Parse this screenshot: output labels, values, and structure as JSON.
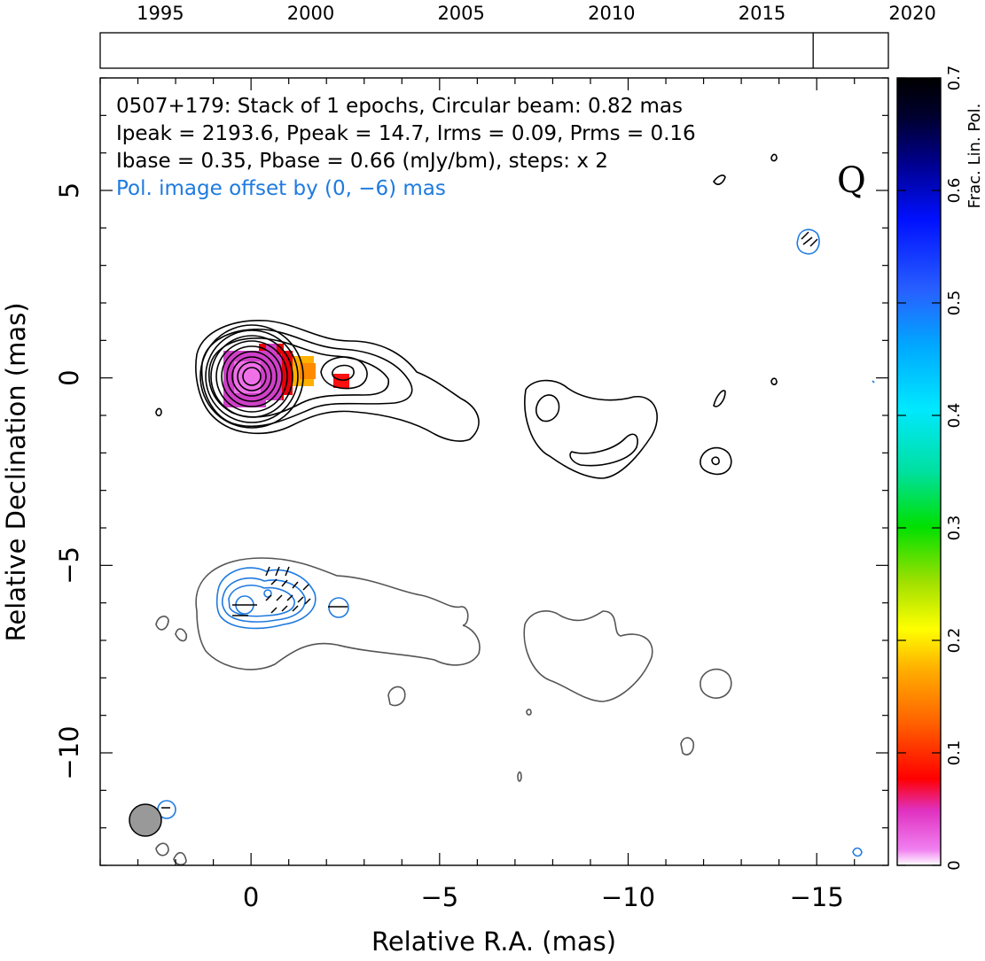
{
  "chart_data": {
    "type": "contour",
    "timeline": {
      "ticks": [
        "1995",
        "2000",
        "2005",
        "2010",
        "2015",
        "2020"
      ],
      "range": [
        1993.0,
        2019.2
      ],
      "epochs": [
        2016.7
      ]
    },
    "info": {
      "line1": "0507+179: Stack of 1 epochs, Circular beam: 0.82 mas",
      "line2": "Ipeak = 2193.6, Ppeak = 14.7, Irms = 0.09, Prms = 0.16",
      "line3": "Ibase = 0.35, Pbase = 0.66 (mJy/bm), steps: x 2",
      "offset_note": "Pol. image offset by (0, −6) mas",
      "band": "Q"
    },
    "xlabel": "Relative R.A. (mas)",
    "ylabel": "Relative Declination (mas)",
    "xlim": [
      4.0,
      -16.9
    ],
    "ylim": [
      -13.0,
      8.0
    ],
    "x_ticks": [
      {
        "v": 0,
        "label": "0"
      },
      {
        "v": -5,
        "label": "−5"
      },
      {
        "v": -10,
        "label": "−10"
      },
      {
        "v": -15,
        "label": "−15"
      }
    ],
    "y_ticks": [
      {
        "v": 5,
        "label": "5"
      },
      {
        "v": 0,
        "label": "0"
      },
      {
        "v": -5,
        "label": "−5"
      },
      {
        "v": -10,
        "label": "−10"
      }
    ],
    "colorbar": {
      "label": "Frac. Lin. Pol.",
      "range": [
        0,
        0.7
      ],
      "ticks": [
        "0",
        "0.1",
        "0.2",
        "0.3",
        "0.4",
        "0.5",
        "0.6",
        "0.7"
      ]
    },
    "core": {
      "x": 0.0,
      "y": 0.0
    },
    "knot": {
      "x": -2.4,
      "y": -0.1
    },
    "beam_diameter": 0.82,
    "colors": {
      "intensity_contour": "#000000",
      "total_contour": "#555555",
      "pol_contour": "#1e7ae0",
      "beam_fill": "#999999"
    }
  }
}
